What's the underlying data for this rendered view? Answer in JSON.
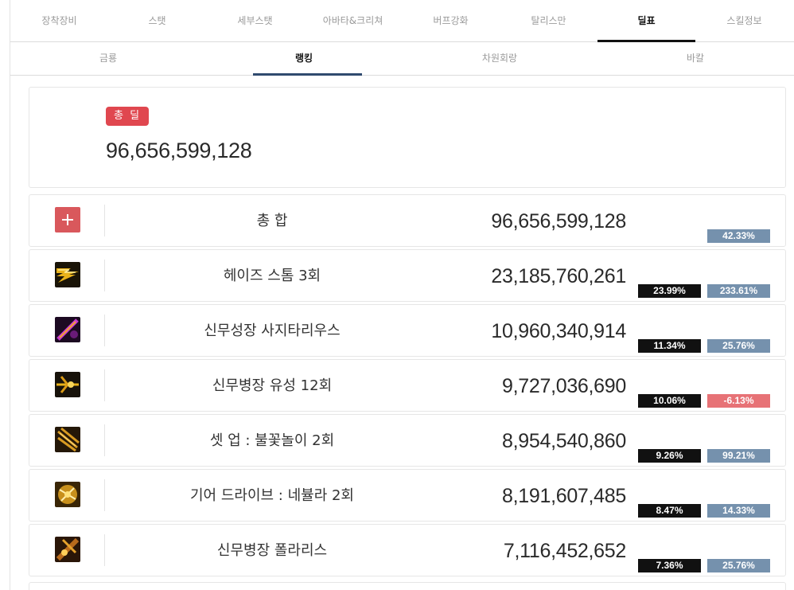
{
  "main_tabs": [
    {
      "label": "장착장비"
    },
    {
      "label": "스탯"
    },
    {
      "label": "세부스탯"
    },
    {
      "label": "아바타&크리쳐"
    },
    {
      "label": "버프강화"
    },
    {
      "label": "탈리스만"
    },
    {
      "label": "딜표"
    },
    {
      "label": "스킬정보"
    }
  ],
  "main_tab_active": "딜표",
  "sub_tabs": [
    {
      "label": "금룡"
    },
    {
      "label": "랭킹"
    },
    {
      "label": "차원회랑"
    },
    {
      "label": "바칼"
    }
  ],
  "sub_tab_active": "랭킹",
  "total": {
    "badge": "총 딜",
    "value": "96,656,599,128"
  },
  "rows": [
    {
      "icon": "plus-icon",
      "name": "총 합",
      "damage": "96,656,599,128",
      "share": "",
      "change": "42.33%",
      "change_dir": "up"
    },
    {
      "icon": "haze-storm-skill-icon",
      "name": "헤이즈 스톰 3회",
      "damage": "23,185,760,261",
      "share": "23.99%",
      "change": "233.61%",
      "change_dir": "up"
    },
    {
      "icon": "sagittarius-skill-icon",
      "name": "신무성장 사지타리우스",
      "damage": "10,960,340,914",
      "share": "11.34%",
      "change": "25.76%",
      "change_dir": "up"
    },
    {
      "icon": "meteor-skill-icon",
      "name": "신무병장 유성 12회",
      "damage": "9,727,036,690",
      "share": "10.06%",
      "change": "-6.13%",
      "change_dir": "down"
    },
    {
      "icon": "fireworks-skill-icon",
      "name": "셋 업 : 불꽃놀이 2회",
      "damage": "8,954,540,860",
      "share": "9.26%",
      "change": "99.21%",
      "change_dir": "up"
    },
    {
      "icon": "nebula-skill-icon",
      "name": "기어 드라이브 : 네뷸라 2회",
      "damage": "8,191,607,485",
      "share": "8.47%",
      "change": "14.33%",
      "change_dir": "up"
    },
    {
      "icon": "polaris-skill-icon",
      "name": "신무병장 폴라리스",
      "damage": "7,116,452,652",
      "share": "7.36%",
      "change": "25.76%",
      "change_dir": "up"
    }
  ],
  "colors": {
    "badge_red": "#e0474f",
    "change_up": "#7591ad",
    "change_down": "#e77276",
    "share_bg": "#111111",
    "sub_tab_indicator": "#2f4a6e"
  }
}
